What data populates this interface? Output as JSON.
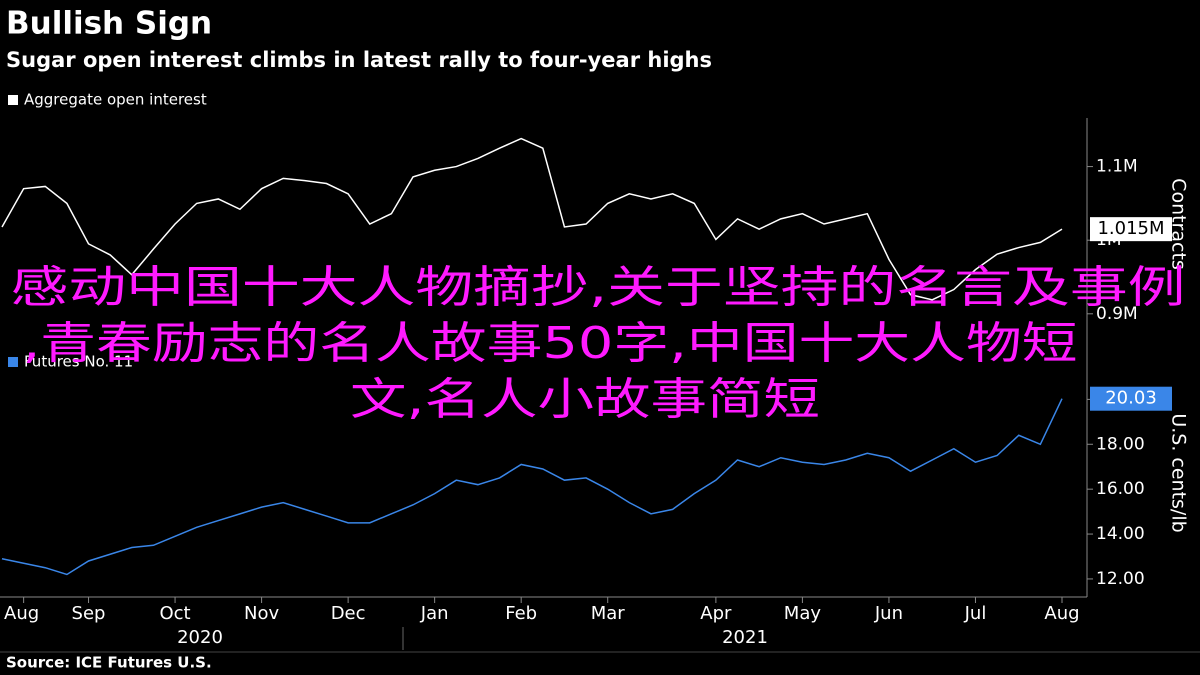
{
  "title": "Bullish Sign",
  "subtitle": "Sugar open interest climbs in latest rally to four-year highs",
  "source": "Source: ICE Futures U.S.",
  "overlay": [
    "感动中国十大人物摘抄,关于坚持的名言及事例",
    ",青春励志的名人故事50字,中国十大人物短",
    "文,名人小故事简短"
  ],
  "years": [
    "2020",
    "2021"
  ],
  "chart_data": [
    {
      "type": "line",
      "ylabel": "Contracts",
      "ylim": [
        878000,
        1166000
      ],
      "yticks": [
        {
          "value": 900000,
          "label": "0.9M"
        },
        {
          "value": 1000000,
          "label": "1M"
        },
        {
          "value": 1100000,
          "label": "1.1M"
        }
      ],
      "categories": [
        null,
        "Aug",
        null,
        null,
        "Sep",
        null,
        null,
        null,
        "Oct",
        null,
        null,
        null,
        "Nov",
        null,
        null,
        null,
        "Dec",
        null,
        null,
        null,
        "Jan",
        null,
        null,
        null,
        "Feb",
        null,
        null,
        null,
        "Mar",
        null,
        null,
        null,
        null,
        "Apr",
        null,
        null,
        null,
        "May",
        null,
        null,
        null,
        "Jun",
        null,
        null,
        null,
        "Jul",
        null,
        null,
        null,
        "Aug"
      ],
      "series": [
        {
          "name": "Aggregate open interest",
          "color": "#ffffff",
          "last_value_label": "1.015M",
          "values": [
            1018000,
            1070000,
            1073000,
            1050000,
            995000,
            980000,
            953000,
            988000,
            1022000,
            1050000,
            1056000,
            1042000,
            1070000,
            1084000,
            1081000,
            1077000,
            1063000,
            1022000,
            1036000,
            1086000,
            1095000,
            1100000,
            1111000,
            1125000,
            1138000,
            1125000,
            1018000,
            1022000,
            1050000,
            1063000,
            1056000,
            1063000,
            1050000,
            1001000,
            1029000,
            1015000,
            1029000,
            1036000,
            1022000,
            1029000,
            1036000,
            974000,
            926000,
            919000,
            933000,
            960000,
            981000,
            990000,
            997000,
            1015000
          ]
        }
      ]
    },
    {
      "type": "line",
      "ylabel": "U.S. cents/lb",
      "ylim": [
        11.24,
        22.2
      ],
      "yticks": [
        {
          "value": 12,
          "label": "12.00"
        },
        {
          "value": 14,
          "label": "14.00"
        },
        {
          "value": 16,
          "label": "16.00"
        },
        {
          "value": 18,
          "label": "18.00"
        },
        {
          "value": 20,
          "label": "20.00"
        }
      ],
      "categories": [
        null,
        "Aug",
        null,
        null,
        "Sep",
        null,
        null,
        null,
        "Oct",
        null,
        null,
        null,
        "Nov",
        null,
        null,
        null,
        "Dec",
        null,
        null,
        null,
        "Jan",
        null,
        null,
        null,
        "Feb",
        null,
        null,
        null,
        "Mar",
        null,
        null,
        null,
        null,
        "Apr",
        null,
        null,
        null,
        "May",
        null,
        null,
        null,
        "Jun",
        null,
        null,
        null,
        "Jul",
        null,
        null,
        null,
        "Aug"
      ],
      "series": [
        {
          "name": "Futures No. 11",
          "color": "#3a86e8",
          "last_value_label": "20.03",
          "values": [
            12.9,
            12.7,
            12.5,
            12.2,
            12.8,
            13.1,
            13.4,
            13.5,
            13.9,
            14.3,
            14.6,
            14.9,
            15.2,
            15.4,
            15.1,
            14.8,
            14.5,
            14.5,
            14.9,
            15.3,
            15.8,
            16.4,
            16.2,
            16.5,
            17.1,
            16.9,
            16.4,
            16.5,
            16.0,
            15.4,
            14.9,
            15.1,
            15.8,
            16.4,
            17.3,
            17.0,
            17.4,
            17.2,
            17.1,
            17.3,
            17.6,
            17.4,
            16.8,
            17.3,
            17.8,
            17.2,
            17.5,
            18.4,
            18.0,
            20.03
          ]
        }
      ]
    }
  ]
}
